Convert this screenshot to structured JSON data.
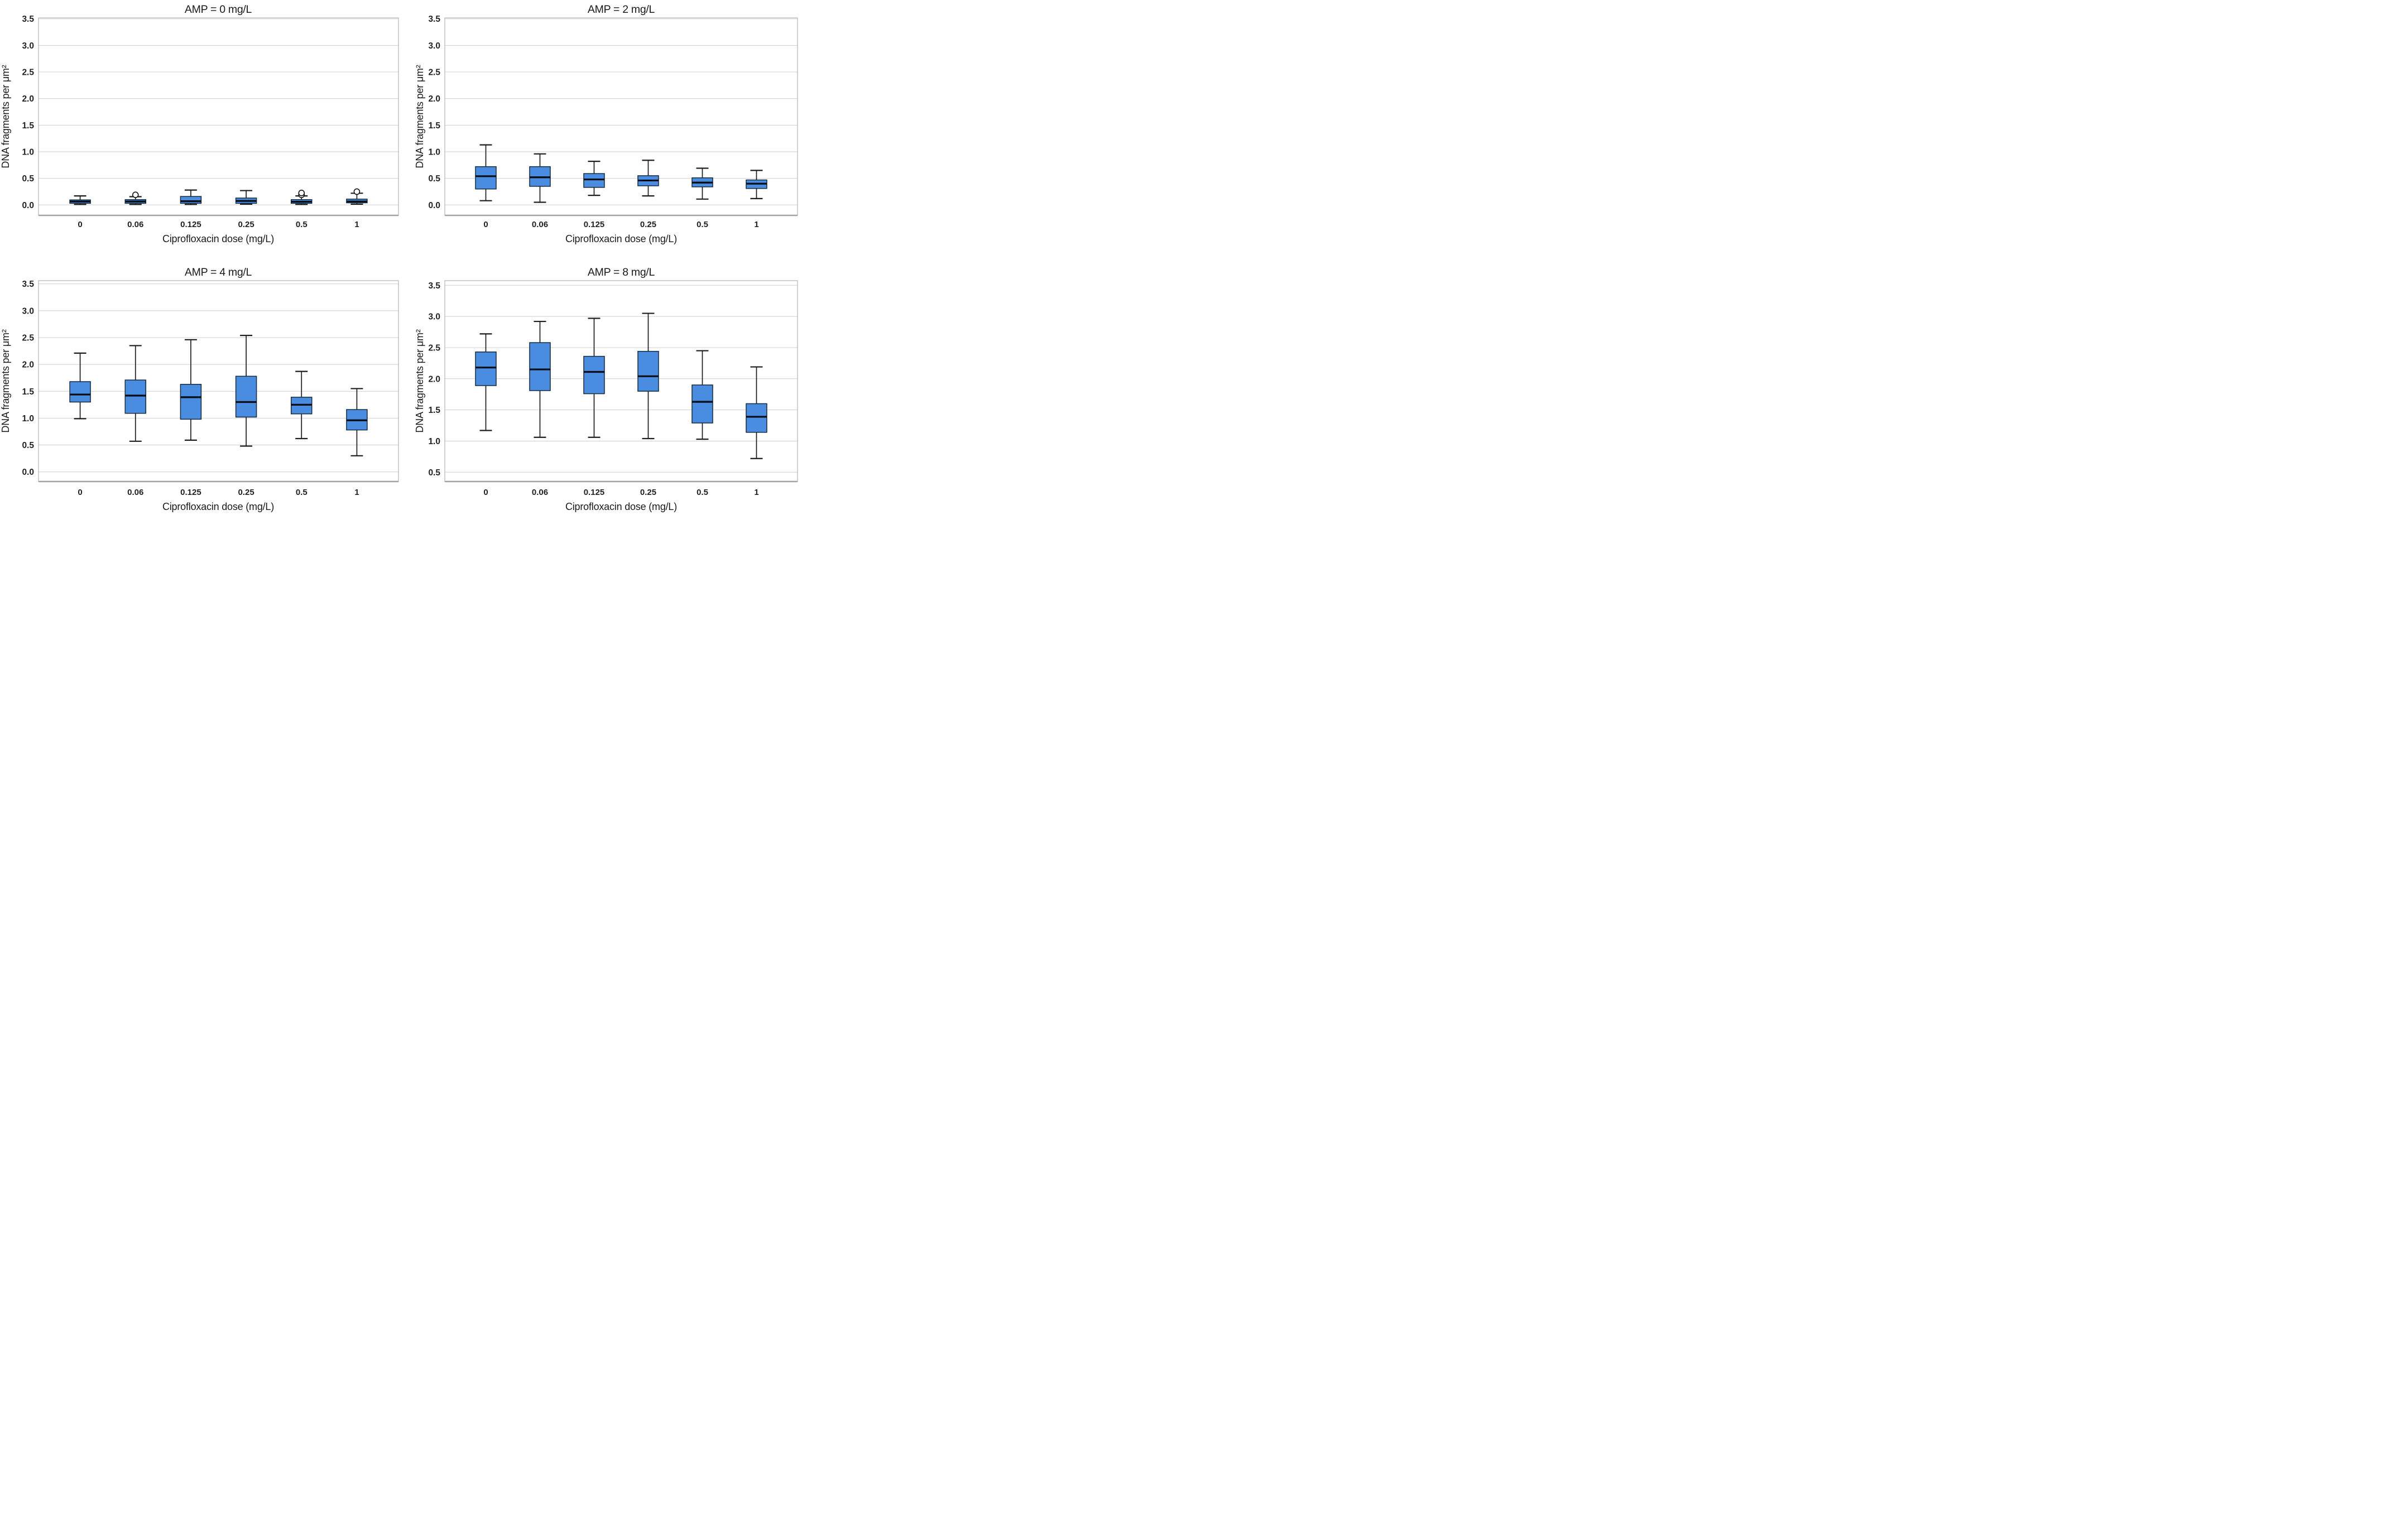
{
  "figure": {
    "x_axis_title": "Ciprofloxacin dose (mg/L)",
    "y_axis_title": "DNA fragments per μm²"
  },
  "colors": {
    "box_fill": "#4a8cdf",
    "box_border": "#182c3f",
    "median_line": "#070d15",
    "whisker": "#1c1c1c",
    "outlier_stroke": "#111111",
    "gridline": "#cfcfcf",
    "frame": "#b5b5b5",
    "axis_baseline": "#a3a3a3",
    "text": "#1a1a1a"
  },
  "chart_data": [
    {
      "type": "box",
      "title": "AMP = 0 mg/L",
      "xlabel": "Ciprofloxacin dose (mg/L)",
      "ylabel": "DNA fragments per μm²",
      "categories": [
        "0",
        "0.06",
        "0.125",
        "0.25",
        "0.5",
        "1"
      ],
      "y_ticks": [
        "3.5",
        "3.0",
        "2.5",
        "2.0",
        "1.5",
        "1.0",
        "0.5",
        "0.0"
      ],
      "ylim": [
        0.0,
        3.5
      ],
      "grid": true,
      "boxes": [
        {
          "category": "0",
          "whisker_low": 0.01,
          "q1": 0.03,
          "median": 0.065,
          "q3": 0.095,
          "whisker_high": 0.17,
          "outliers": []
        },
        {
          "category": "0.06",
          "whisker_low": 0.01,
          "q1": 0.03,
          "median": 0.065,
          "q3": 0.1,
          "whisker_high": 0.155,
          "outliers": [
            0.19
          ]
        },
        {
          "category": "0.125",
          "whisker_low": 0.01,
          "q1": 0.03,
          "median": 0.07,
          "q3": 0.16,
          "whisker_high": 0.28,
          "outliers": []
        },
        {
          "category": "0.25",
          "whisker_low": 0.015,
          "q1": 0.03,
          "median": 0.075,
          "q3": 0.13,
          "whisker_high": 0.27,
          "outliers": []
        },
        {
          "category": "0.5",
          "whisker_low": 0.01,
          "q1": 0.03,
          "median": 0.06,
          "q3": 0.1,
          "whisker_high": 0.17,
          "outliers": [
            0.19,
            0.225
          ]
        },
        {
          "category": "1",
          "whisker_low": 0.015,
          "q1": 0.04,
          "median": 0.065,
          "q3": 0.11,
          "whisker_high": 0.22,
          "outliers": [
            0.25
          ]
        }
      ]
    },
    {
      "type": "box",
      "title": "AMP = 2 mg/L",
      "xlabel": "Ciprofloxacin dose (mg/L)",
      "ylabel": "DNA fragments per μm²",
      "categories": [
        "0",
        "0.06",
        "0.125",
        "0.25",
        "0.5",
        "1"
      ],
      "y_ticks": [
        "3.5",
        "3.0",
        "2.5",
        "2.0",
        "1.5",
        "1.0",
        "0.5",
        "0.0"
      ],
      "ylim": [
        0.0,
        3.5
      ],
      "grid": true,
      "boxes": [
        {
          "category": "0",
          "whisker_low": 0.08,
          "q1": 0.3,
          "median": 0.54,
          "q3": 0.72,
          "whisker_high": 1.13,
          "outliers": []
        },
        {
          "category": "0.06",
          "whisker_low": 0.05,
          "q1": 0.35,
          "median": 0.52,
          "q3": 0.72,
          "whisker_high": 0.96,
          "outliers": []
        },
        {
          "category": "0.125",
          "whisker_low": 0.18,
          "q1": 0.33,
          "median": 0.48,
          "q3": 0.59,
          "whisker_high": 0.82,
          "outliers": []
        },
        {
          "category": "0.25",
          "whisker_low": 0.17,
          "q1": 0.36,
          "median": 0.46,
          "q3": 0.55,
          "whisker_high": 0.84,
          "outliers": []
        },
        {
          "category": "0.5",
          "whisker_low": 0.11,
          "q1": 0.34,
          "median": 0.42,
          "q3": 0.51,
          "whisker_high": 0.69,
          "outliers": []
        },
        {
          "category": "1",
          "whisker_low": 0.12,
          "q1": 0.31,
          "median": 0.4,
          "q3": 0.47,
          "whisker_high": 0.65,
          "outliers": []
        }
      ]
    },
    {
      "type": "box",
      "title": "AMP = 4 mg/L",
      "xlabel": "Ciprofloxacin dose (mg/L)",
      "ylabel": "DNA fragments per μm²",
      "categories": [
        "0",
        "0.06",
        "0.125",
        "0.25",
        "0.5",
        "1"
      ],
      "y_ticks": [
        "3.5",
        "3.0",
        "2.5",
        "2.0",
        "1.5",
        "1.0",
        "0.5",
        "0.0"
      ],
      "ylim": [
        0.0,
        3.5
      ],
      "grid": true,
      "boxes": [
        {
          "category": "0",
          "whisker_low": 0.99,
          "q1": 1.3,
          "median": 1.44,
          "q3": 1.68,
          "whisker_high": 2.21,
          "outliers": []
        },
        {
          "category": "0.06",
          "whisker_low": 0.57,
          "q1": 1.09,
          "median": 1.42,
          "q3": 1.71,
          "whisker_high": 2.35,
          "outliers": []
        },
        {
          "category": "0.125",
          "whisker_low": 0.59,
          "q1": 0.98,
          "median": 1.39,
          "q3": 1.63,
          "whisker_high": 2.46,
          "outliers": []
        },
        {
          "category": "0.25",
          "whisker_low": 0.48,
          "q1": 1.02,
          "median": 1.3,
          "q3": 1.78,
          "whisker_high": 2.54,
          "outliers": []
        },
        {
          "category": "0.5",
          "whisker_low": 0.62,
          "q1": 1.08,
          "median": 1.25,
          "q3": 1.39,
          "whisker_high": 1.87,
          "outliers": []
        },
        {
          "category": "1",
          "whisker_low": 0.3,
          "q1": 0.78,
          "median": 0.96,
          "q3": 1.16,
          "whisker_high": 1.55,
          "outliers": []
        }
      ]
    },
    {
      "type": "box",
      "title": "AMP = 8 mg/L",
      "xlabel": "Ciprofloxacin dose (mg/L)",
      "ylabel": "DNA fragments per μm²",
      "categories": [
        "0",
        "0.06",
        "0.125",
        "0.25",
        "0.5",
        "1"
      ],
      "y_ticks": [
        "3.5",
        "3.0",
        "2.5",
        "2.0",
        "1.5",
        "1.0",
        "0.5"
      ],
      "ylim": [
        0.5,
        3.5
      ],
      "grid": true,
      "boxes": [
        {
          "category": "0",
          "whisker_low": 1.17,
          "q1": 1.89,
          "median": 2.18,
          "q3": 2.43,
          "whisker_high": 2.72,
          "outliers": []
        },
        {
          "category": "0.06",
          "whisker_low": 1.06,
          "q1": 1.81,
          "median": 2.15,
          "q3": 2.58,
          "whisker_high": 2.92,
          "outliers": []
        },
        {
          "category": "0.125",
          "whisker_low": 1.06,
          "q1": 1.76,
          "median": 2.11,
          "q3": 2.36,
          "whisker_high": 2.97,
          "outliers": []
        },
        {
          "category": "0.25",
          "whisker_low": 1.04,
          "q1": 1.8,
          "median": 2.04,
          "q3": 2.44,
          "whisker_high": 3.05,
          "outliers": []
        },
        {
          "category": "0.5",
          "whisker_low": 1.03,
          "q1": 1.29,
          "median": 1.63,
          "q3": 1.9,
          "whisker_high": 2.45,
          "outliers": []
        },
        {
          "category": "1",
          "whisker_low": 0.72,
          "q1": 1.14,
          "median": 1.39,
          "q3": 1.6,
          "whisker_high": 2.19,
          "outliers": []
        }
      ]
    }
  ]
}
